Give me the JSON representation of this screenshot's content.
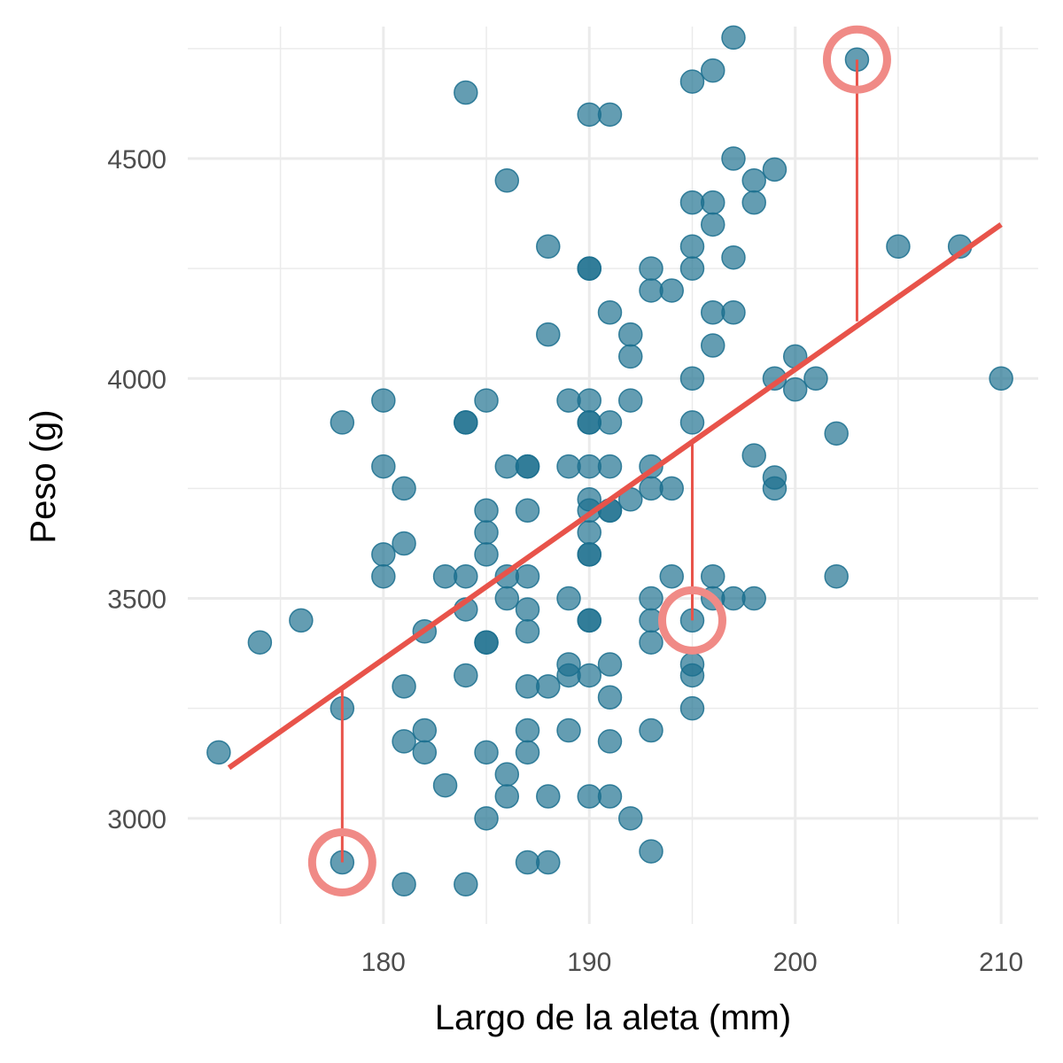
{
  "chart_data": {
    "type": "scatter",
    "xlabel": "Largo de la aleta (mm)",
    "ylabel": "Peso (g)",
    "xlim": [
      170.5,
      211.8
    ],
    "ylim": [
      2760,
      4800
    ],
    "x_ticks": [
      180,
      190,
      200,
      210
    ],
    "y_ticks": [
      3000,
      3500,
      4000,
      4500
    ],
    "x_minor": [
      175,
      185,
      195,
      205
    ],
    "y_minor": [
      3250,
      3750,
      4250,
      4750
    ],
    "grid": true,
    "colors": {
      "points": "#1a6f8e",
      "fit_line": "#e8534a",
      "highlight": "#f08a86",
      "grid": "#ebebeb"
    },
    "fit_line": {
      "x": [
        172.5,
        210.0
      ],
      "y": [
        3115,
        4350
      ]
    },
    "highlighted": [
      {
        "x": 178,
        "y": 2900,
        "fitted": 3300
      },
      {
        "x": 195,
        "y": 3450,
        "fitted": 3860
      },
      {
        "x": 203,
        "y": 4725,
        "fitted": 4130
      }
    ],
    "points": [
      {
        "x": 172,
        "y": 3150
      },
      {
        "x": 174,
        "y": 3400
      },
      {
        "x": 176,
        "y": 3450
      },
      {
        "x": 178,
        "y": 3900
      },
      {
        "x": 178,
        "y": 3250
      },
      {
        "x": 178,
        "y": 2900
      },
      {
        "x": 180,
        "y": 3950
      },
      {
        "x": 180,
        "y": 3800
      },
      {
        "x": 180,
        "y": 3600
      },
      {
        "x": 180,
        "y": 3550
      },
      {
        "x": 181,
        "y": 3750
      },
      {
        "x": 181,
        "y": 3625
      },
      {
        "x": 181,
        "y": 3300
      },
      {
        "x": 181,
        "y": 3175
      },
      {
        "x": 181,
        "y": 2850
      },
      {
        "x": 182,
        "y": 3425
      },
      {
        "x": 182,
        "y": 3200
      },
      {
        "x": 182,
        "y": 3150
      },
      {
        "x": 183,
        "y": 3550
      },
      {
        "x": 183,
        "y": 3075
      },
      {
        "x": 184,
        "y": 4650
      },
      {
        "x": 184,
        "y": 3900
      },
      {
        "x": 184,
        "y": 3900
      },
      {
        "x": 184,
        "y": 3550
      },
      {
        "x": 184,
        "y": 3475
      },
      {
        "x": 184,
        "y": 3325
      },
      {
        "x": 184,
        "y": 2850
      },
      {
        "x": 185,
        "y": 3950
      },
      {
        "x": 185,
        "y": 3700
      },
      {
        "x": 185,
        "y": 3650
      },
      {
        "x": 185,
        "y": 3600
      },
      {
        "x": 185,
        "y": 3400
      },
      {
        "x": 185,
        "y": 3400
      },
      {
        "x": 185,
        "y": 3150
      },
      {
        "x": 185,
        "y": 3000
      },
      {
        "x": 186,
        "y": 4450
      },
      {
        "x": 186,
        "y": 3800
      },
      {
        "x": 186,
        "y": 3550
      },
      {
        "x": 186,
        "y": 3500
      },
      {
        "x": 186,
        "y": 3100
      },
      {
        "x": 186,
        "y": 3050
      },
      {
        "x": 187,
        "y": 3800
      },
      {
        "x": 187,
        "y": 3800
      },
      {
        "x": 187,
        "y": 3700
      },
      {
        "x": 187,
        "y": 3550
      },
      {
        "x": 187,
        "y": 3475
      },
      {
        "x": 187,
        "y": 3425
      },
      {
        "x": 187,
        "y": 3300
      },
      {
        "x": 187,
        "y": 3200
      },
      {
        "x": 187,
        "y": 3150
      },
      {
        "x": 187,
        "y": 2900
      },
      {
        "x": 188,
        "y": 4300
      },
      {
        "x": 188,
        "y": 4100
      },
      {
        "x": 188,
        "y": 3300
      },
      {
        "x": 188,
        "y": 3050
      },
      {
        "x": 188,
        "y": 2900
      },
      {
        "x": 189,
        "y": 3950
      },
      {
        "x": 189,
        "y": 3800
      },
      {
        "x": 189,
        "y": 3500
      },
      {
        "x": 189,
        "y": 3350
      },
      {
        "x": 189,
        "y": 3325
      },
      {
        "x": 189,
        "y": 3200
      },
      {
        "x": 190,
        "y": 4600
      },
      {
        "x": 190,
        "y": 4250
      },
      {
        "x": 190,
        "y": 4250
      },
      {
        "x": 190,
        "y": 3950
      },
      {
        "x": 190,
        "y": 3900
      },
      {
        "x": 190,
        "y": 3900
      },
      {
        "x": 190,
        "y": 3800
      },
      {
        "x": 190,
        "y": 3725
      },
      {
        "x": 190,
        "y": 3700
      },
      {
        "x": 190,
        "y": 3650
      },
      {
        "x": 190,
        "y": 3600
      },
      {
        "x": 190,
        "y": 3600
      },
      {
        "x": 190,
        "y": 3450
      },
      {
        "x": 190,
        "y": 3450
      },
      {
        "x": 190,
        "y": 3325
      },
      {
        "x": 190,
        "y": 3050
      },
      {
        "x": 191,
        "y": 4600
      },
      {
        "x": 191,
        "y": 4150
      },
      {
        "x": 191,
        "y": 3900
      },
      {
        "x": 191,
        "y": 3800
      },
      {
        "x": 191,
        "y": 3700
      },
      {
        "x": 191,
        "y": 3700
      },
      {
        "x": 191,
        "y": 3350
      },
      {
        "x": 191,
        "y": 3275
      },
      {
        "x": 191,
        "y": 3175
      },
      {
        "x": 191,
        "y": 3050
      },
      {
        "x": 192,
        "y": 4100
      },
      {
        "x": 192,
        "y": 4050
      },
      {
        "x": 192,
        "y": 3950
      },
      {
        "x": 192,
        "y": 3725
      },
      {
        "x": 192,
        "y": 3000
      },
      {
        "x": 193,
        "y": 4250
      },
      {
        "x": 193,
        "y": 4200
      },
      {
        "x": 193,
        "y": 3800
      },
      {
        "x": 193,
        "y": 3750
      },
      {
        "x": 193,
        "y": 3500
      },
      {
        "x": 193,
        "y": 3450
      },
      {
        "x": 193,
        "y": 3400
      },
      {
        "x": 193,
        "y": 3200
      },
      {
        "x": 193,
        "y": 2925
      },
      {
        "x": 194,
        "y": 4200
      },
      {
        "x": 194,
        "y": 3750
      },
      {
        "x": 194,
        "y": 3550
      },
      {
        "x": 195,
        "y": 4675
      },
      {
        "x": 195,
        "y": 4400
      },
      {
        "x": 195,
        "y": 4300
      },
      {
        "x": 195,
        "y": 4250
      },
      {
        "x": 195,
        "y": 4000
      },
      {
        "x": 195,
        "y": 3900
      },
      {
        "x": 195,
        "y": 3450
      },
      {
        "x": 195,
        "y": 3350
      },
      {
        "x": 195,
        "y": 3325
      },
      {
        "x": 195,
        "y": 3250
      },
      {
        "x": 196,
        "y": 4700
      },
      {
        "x": 196,
        "y": 4400
      },
      {
        "x": 196,
        "y": 4350
      },
      {
        "x": 196,
        "y": 4150
      },
      {
        "x": 196,
        "y": 4075
      },
      {
        "x": 196,
        "y": 3550
      },
      {
        "x": 196,
        "y": 3500
      },
      {
        "x": 197,
        "y": 4775
      },
      {
        "x": 197,
        "y": 4500
      },
      {
        "x": 197,
        "y": 4275
      },
      {
        "x": 197,
        "y": 4150
      },
      {
        "x": 197,
        "y": 3500
      },
      {
        "x": 198,
        "y": 4450
      },
      {
        "x": 198,
        "y": 4400
      },
      {
        "x": 198,
        "y": 3825
      },
      {
        "x": 198,
        "y": 3500
      },
      {
        "x": 199,
        "y": 4475
      },
      {
        "x": 199,
        "y": 4000
      },
      {
        "x": 199,
        "y": 3775
      },
      {
        "x": 199,
        "y": 3750
      },
      {
        "x": 200,
        "y": 4050
      },
      {
        "x": 200,
        "y": 3975
      },
      {
        "x": 201,
        "y": 4000
      },
      {
        "x": 202,
        "y": 3875
      },
      {
        "x": 202,
        "y": 3550
      },
      {
        "x": 203,
        "y": 4725
      },
      {
        "x": 205,
        "y": 4300
      },
      {
        "x": 208,
        "y": 4300
      },
      {
        "x": 210,
        "y": 4000
      }
    ]
  }
}
